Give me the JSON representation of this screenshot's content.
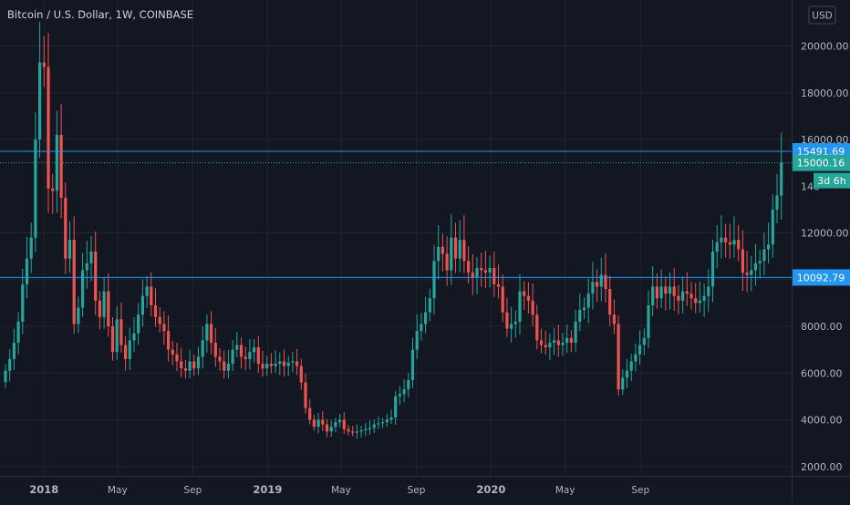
{
  "header": {
    "symbol_title": "Bitcoin / U.S. Dollar, 1W, COINBASE",
    "currency_button": "USD"
  },
  "colors": {
    "background": "#131722",
    "grid": "#1f2430",
    "up": "#26a69a",
    "down": "#ef5350",
    "hline": "#2196f3",
    "axis_text": "#b2b5be",
    "last_price_bg": "#26a69a",
    "hline_label_bg": "#2196f3"
  },
  "chart_data": {
    "type": "candlestick",
    "title": "Bitcoin / U.S. Dollar, 1W, COINBASE",
    "interval": "1W",
    "currency": "USD",
    "scale": "linear",
    "ylim": [
      1000,
      21200
    ],
    "y_ticks": [
      "20000.00",
      "18000.00",
      "16000.00",
      "12000.00",
      "10000.00",
      "8000.00",
      "6000.00",
      "4000.00",
      "2000.00"
    ],
    "x_ticks": [
      {
        "label": "2018",
        "date": "2018-01-01"
      },
      {
        "label": "May",
        "date": "2018-05-01"
      },
      {
        "label": "Sep",
        "date": "2018-09-01"
      },
      {
        "label": "2019",
        "date": "2019-01-01"
      },
      {
        "label": "May",
        "date": "2019-05-01"
      },
      {
        "label": "Sep",
        "date": "2019-09-01"
      },
      {
        "label": "2020",
        "date": "2020-01-01"
      },
      {
        "label": "May",
        "date": "2020-05-01"
      },
      {
        "label": "Sep",
        "date": "2020-09-01"
      }
    ],
    "x_start_date": "2017-10-30",
    "horizontal_lines": [
      {
        "price": 15491.69,
        "label": "15491.69"
      },
      {
        "price": 10092.79,
        "label": "10092.79"
      }
    ],
    "last_price": {
      "price": 15000.16,
      "label": "15000.16",
      "countdown": "3d 6h"
    },
    "partial_tick_label": "140",
    "grid": true,
    "closes": [
      6100,
      6600,
      7300,
      8200,
      9800,
      10900,
      11800,
      16000,
      19300,
      19100,
      13900,
      13800,
      16200,
      13500,
      10900,
      11700,
      8100,
      8800,
      10400,
      10700,
      11200,
      9100,
      8400,
      9500,
      8000,
      6900,
      8300,
      7200,
      6600,
      7400,
      7700,
      8500,
      9300,
      9700,
      8900,
      8400,
      8100,
      7800,
      7000,
      6800,
      6500,
      6200,
      6100,
      6500,
      6200,
      6700,
      7400,
      8100,
      7300,
      6700,
      6500,
      6100,
      6400,
      7000,
      7200,
      6700,
      6600,
      6900,
      7100,
      6400,
      6200,
      6400,
      6300,
      6400,
      6500,
      6300,
      6450,
      6500,
      6300,
      5600,
      4500,
      4000,
      3700,
      4000,
      3800,
      3500,
      3700,
      3900,
      4000,
      3600,
      3500,
      3450,
      3500,
      3550,
      3600,
      3650,
      3800,
      3850,
      3900,
      4000,
      4100,
      5000,
      5100,
      5300,
      5700,
      7000,
      7800,
      8100,
      8600,
      9200,
      10800,
      11400,
      11100,
      10400,
      11800,
      10900,
      11700,
      10800,
      10300,
      10100,
      10500,
      10400,
      10300,
      10500,
      9800,
      9700,
      8600,
      7900,
      8100,
      8200,
      9500,
      9300,
      9100,
      8500,
      7400,
      7200,
      7100,
      7300,
      7400,
      7200,
      7300,
      7500,
      7300,
      8200,
      8700,
      8800,
      9400,
      9900,
      9700,
      10200,
      9600,
      8500,
      8100,
      5300,
      5800,
      6100,
      6500,
      6800,
      7200,
      7500,
      8900,
      9700,
      9200,
      9700,
      9400,
      9700,
      9300,
      9100,
      9500,
      9400,
      9200,
      9000,
      9100,
      9300,
      9700,
      11200,
      11600,
      11800,
      11600,
      11500,
      11700,
      11300,
      10300,
      10200,
      10400,
      10700,
      10800,
      11300,
      11500,
      13000,
      13600,
      15000.16
    ]
  }
}
